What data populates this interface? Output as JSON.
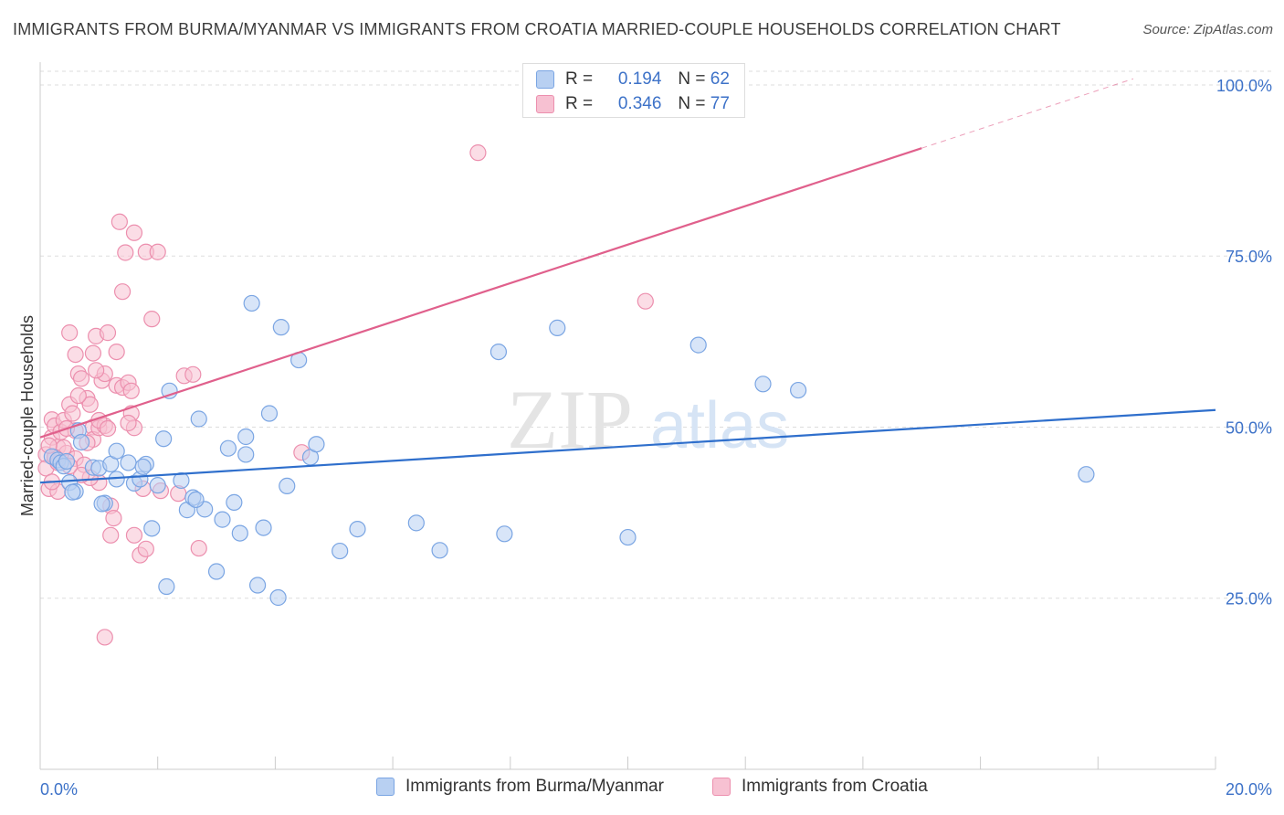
{
  "title": "IMMIGRANTS FROM BURMA/MYANMAR VS IMMIGRANTS FROM CROATIA MARRIED-COUPLE HOUSEHOLDS CORRELATION CHART",
  "source": "Source: ZipAtlas.com",
  "watermark": {
    "zip": "ZIP",
    "atlas": "atlas"
  },
  "colors": {
    "blue_fill": "#b8d0f2",
    "blue_stroke": "#7aa5e3",
    "blue_line": "#2f6fcc",
    "pink_fill": "#f7c1d2",
    "pink_stroke": "#ec8fae",
    "pink_line": "#e0608c",
    "axis_text": "#3d72c8",
    "grid": "#dddddd"
  },
  "legend_top": [
    {
      "r_label": "R =",
      "r_value": "0.194",
      "n_label": "N =",
      "n_value": "62"
    },
    {
      "r_label": "R =",
      "r_value": "0.346",
      "n_label": "N =",
      "n_value": "77"
    }
  ],
  "chart_data": {
    "type": "scatter",
    "xlabel": "",
    "ylabel": "Married-couple Households",
    "xlim": [
      0,
      20
    ],
    "ylim": [
      0,
      102
    ],
    "x_tick_labels": [
      {
        "value": 0,
        "label": "0.0%"
      },
      {
        "value": 20,
        "label": "20.0%"
      }
    ],
    "y_tick_labels": [
      {
        "value": 25,
        "label": "25.0%"
      },
      {
        "value": 50,
        "label": "50.0%"
      },
      {
        "value": 75,
        "label": "75.0%"
      },
      {
        "value": 100,
        "label": "100.0%"
      }
    ],
    "series": [
      {
        "name": "Immigrants from Burma/Myanmar",
        "color": "blue",
        "r": 0.194,
        "n": 62,
        "trend": {
          "x0": 0,
          "y0": 41.9,
          "x1": 20,
          "y1": 52.5,
          "dash_from": null
        },
        "points": [
          [
            0.2,
            45.7
          ],
          [
            0.3,
            45.2
          ],
          [
            0.35,
            44.8
          ],
          [
            0.4,
            44.3
          ],
          [
            0.5,
            41.9
          ],
          [
            0.6,
            40.6
          ],
          [
            0.65,
            49.5
          ],
          [
            0.7,
            47.8
          ],
          [
            0.9,
            44.1
          ],
          [
            1.0,
            44.0
          ],
          [
            1.1,
            38.9
          ],
          [
            1.2,
            44.6
          ],
          [
            1.3,
            42.4
          ],
          [
            1.3,
            46.5
          ],
          [
            1.5,
            44.8
          ],
          [
            1.6,
            41.8
          ],
          [
            1.7,
            42.4
          ],
          [
            1.8,
            44.6
          ],
          [
            1.9,
            35.2
          ],
          [
            2.0,
            41.5
          ],
          [
            2.1,
            48.3
          ],
          [
            2.15,
            26.7
          ],
          [
            2.2,
            55.3
          ],
          [
            2.4,
            42.2
          ],
          [
            2.5,
            37.9
          ],
          [
            2.6,
            39.7
          ],
          [
            2.7,
            51.2
          ],
          [
            2.8,
            38.0
          ],
          [
            3.0,
            28.9
          ],
          [
            3.1,
            36.5
          ],
          [
            3.2,
            46.9
          ],
          [
            3.3,
            39.0
          ],
          [
            3.4,
            34.5
          ],
          [
            3.5,
            48.6
          ],
          [
            3.5,
            46.0
          ],
          [
            3.6,
            68.1
          ],
          [
            3.7,
            26.9
          ],
          [
            3.8,
            35.3
          ],
          [
            3.9,
            52.0
          ],
          [
            4.1,
            64.6
          ],
          [
            4.2,
            41.4
          ],
          [
            4.4,
            59.8
          ],
          [
            4.6,
            45.6
          ],
          [
            4.7,
            47.5
          ],
          [
            5.1,
            31.9
          ],
          [
            5.4,
            35.1
          ],
          [
            6.4,
            36.0
          ],
          [
            6.8,
            32.0
          ],
          [
            7.8,
            61.0
          ],
          [
            7.9,
            34.4
          ],
          [
            8.8,
            64.5
          ],
          [
            10.0,
            33.9
          ],
          [
            11.2,
            62.0
          ],
          [
            12.3,
            56.3
          ],
          [
            12.9,
            55.4
          ],
          [
            17.8,
            43.1
          ],
          [
            0.55,
            40.5
          ],
          [
            1.75,
            44.2
          ],
          [
            2.65,
            39.4
          ],
          [
            4.05,
            25.1
          ],
          [
            0.45,
            45.0
          ],
          [
            1.05,
            38.8
          ]
        ]
      },
      {
        "name": "Immigrants from Croatia",
        "color": "pink",
        "r": 0.346,
        "n": 77,
        "trend": {
          "x0": 0,
          "y0": 48.5,
          "x1": 18.6,
          "y1": 100.9,
          "dash_from": 15.0
        },
        "points": [
          [
            0.1,
            46.0
          ],
          [
            0.1,
            44.0
          ],
          [
            0.15,
            41.0
          ],
          [
            0.2,
            48.5
          ],
          [
            0.2,
            51.1
          ],
          [
            0.25,
            50.2
          ],
          [
            0.3,
            44.8
          ],
          [
            0.3,
            47.1
          ],
          [
            0.35,
            49.3
          ],
          [
            0.4,
            51.0
          ],
          [
            0.45,
            46.2
          ],
          [
            0.5,
            53.3
          ],
          [
            0.5,
            63.8
          ],
          [
            0.55,
            52.0
          ],
          [
            0.6,
            60.6
          ],
          [
            0.6,
            45.4
          ],
          [
            0.65,
            57.8
          ],
          [
            0.7,
            57.1
          ],
          [
            0.75,
            44.5
          ],
          [
            0.8,
            54.2
          ],
          [
            0.85,
            53.3
          ],
          [
            0.9,
            50.0
          ],
          [
            0.9,
            60.8
          ],
          [
            0.9,
            48.2
          ],
          [
            0.95,
            63.3
          ],
          [
            1.0,
            49.9
          ],
          [
            1.0,
            41.9
          ],
          [
            1.05,
            56.8
          ],
          [
            1.1,
            57.8
          ],
          [
            1.1,
            50.2
          ],
          [
            1.15,
            63.8
          ],
          [
            1.2,
            38.5
          ],
          [
            1.25,
            36.7
          ],
          [
            1.3,
            61.0
          ],
          [
            1.3,
            56.1
          ],
          [
            1.35,
            80.0
          ],
          [
            1.4,
            55.8
          ],
          [
            1.4,
            69.8
          ],
          [
            1.45,
            75.5
          ],
          [
            1.5,
            56.5
          ],
          [
            1.55,
            52.0
          ],
          [
            1.6,
            78.4
          ],
          [
            1.6,
            49.9
          ],
          [
            1.7,
            31.3
          ],
          [
            1.75,
            41.0
          ],
          [
            1.8,
            32.2
          ],
          [
            1.8,
            75.6
          ],
          [
            1.9,
            65.8
          ],
          [
            2.0,
            75.6
          ],
          [
            2.35,
            40.3
          ],
          [
            2.45,
            57.5
          ],
          [
            2.6,
            57.7
          ],
          [
            2.7,
            32.3
          ],
          [
            4.45,
            46.3
          ],
          [
            7.45,
            90.1
          ],
          [
            10.3,
            68.4
          ],
          [
            1.1,
            19.3
          ],
          [
            0.3,
            40.6
          ],
          [
            0.4,
            47.0
          ],
          [
            0.85,
            42.6
          ],
          [
            1.2,
            34.2
          ],
          [
            1.6,
            34.2
          ],
          [
            1.0,
            51.0
          ],
          [
            0.7,
            43.0
          ],
          [
            0.2,
            42.0
          ],
          [
            0.5,
            44.3
          ],
          [
            0.6,
            49.5
          ],
          [
            1.55,
            55.3
          ],
          [
            0.25,
            45.6
          ],
          [
            0.45,
            49.8
          ],
          [
            0.8,
            47.7
          ],
          [
            1.15,
            49.8
          ],
          [
            1.5,
            50.6
          ],
          [
            2.05,
            40.7
          ],
          [
            0.15,
            47.3
          ],
          [
            0.65,
            54.6
          ],
          [
            0.95,
            58.3
          ]
        ]
      }
    ]
  }
}
